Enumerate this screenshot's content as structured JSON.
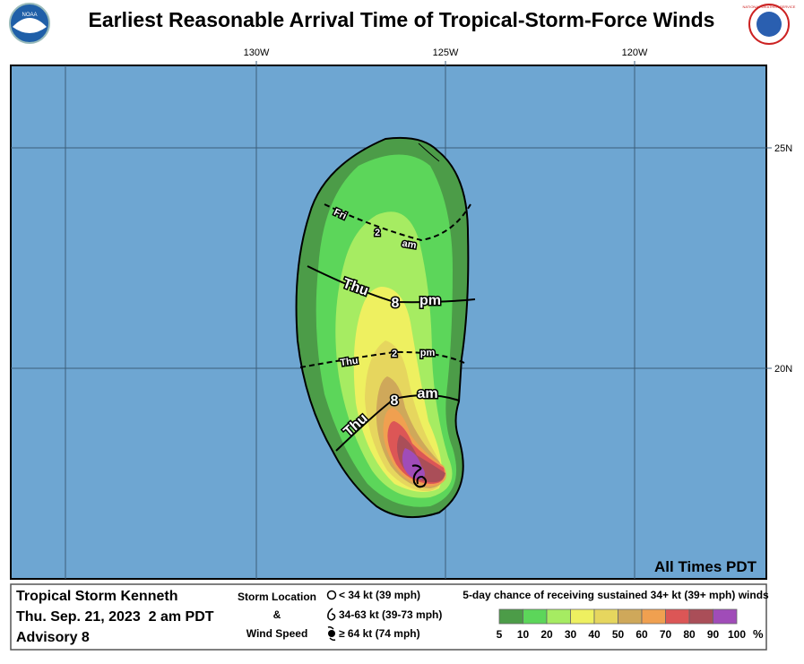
{
  "header": {
    "title": "Earliest Reasonable Arrival Time of Tropical-Storm-Force Winds",
    "left_logo": "NOAA",
    "right_logo": "NATIONAL WEATHER SERVICE"
  },
  "map": {
    "lon_labels": [
      "130W",
      "125W",
      "120W"
    ],
    "lat_labels": [
      "25N",
      "20N"
    ],
    "contours": [
      {
        "day": "Fri",
        "hour": "2",
        "ampm": "am"
      },
      {
        "day": "Thu",
        "hour": "8",
        "ampm": "pm"
      },
      {
        "day": "Thu",
        "hour": "2",
        "ampm": "pm"
      },
      {
        "day": "Thu",
        "hour": "8",
        "ampm": "am"
      }
    ],
    "time_zone_note": "All Times PDT"
  },
  "footer": {
    "storm": "Tropical Storm Kenneth",
    "date": "Thu. Sep. 21, 2023  2 am PDT",
    "advisory": "Advisory 8",
    "key_title": [
      "Storm Location",
      "&",
      "Wind Speed"
    ],
    "key_items": [
      "< 34 kt (39 mph)",
      "34-63 kt (39-73 mph)",
      "≥ 64 kt (74 mph)"
    ],
    "scale_title": "5-day chance of receiving sustained 34+ kt (39+ mph) winds",
    "scale_labels": [
      5,
      10,
      20,
      30,
      40,
      50,
      60,
      70,
      80,
      90,
      100
    ],
    "scale_unit": "%",
    "scale_colors": [
      "#4c9c48",
      "#5cd65a",
      "#a6ec62",
      "#eef060",
      "#e6d65e",
      "#cfa85a",
      "#f0a050",
      "#dc5656",
      "#aa4e58",
      "#a04cb8"
    ]
  }
}
